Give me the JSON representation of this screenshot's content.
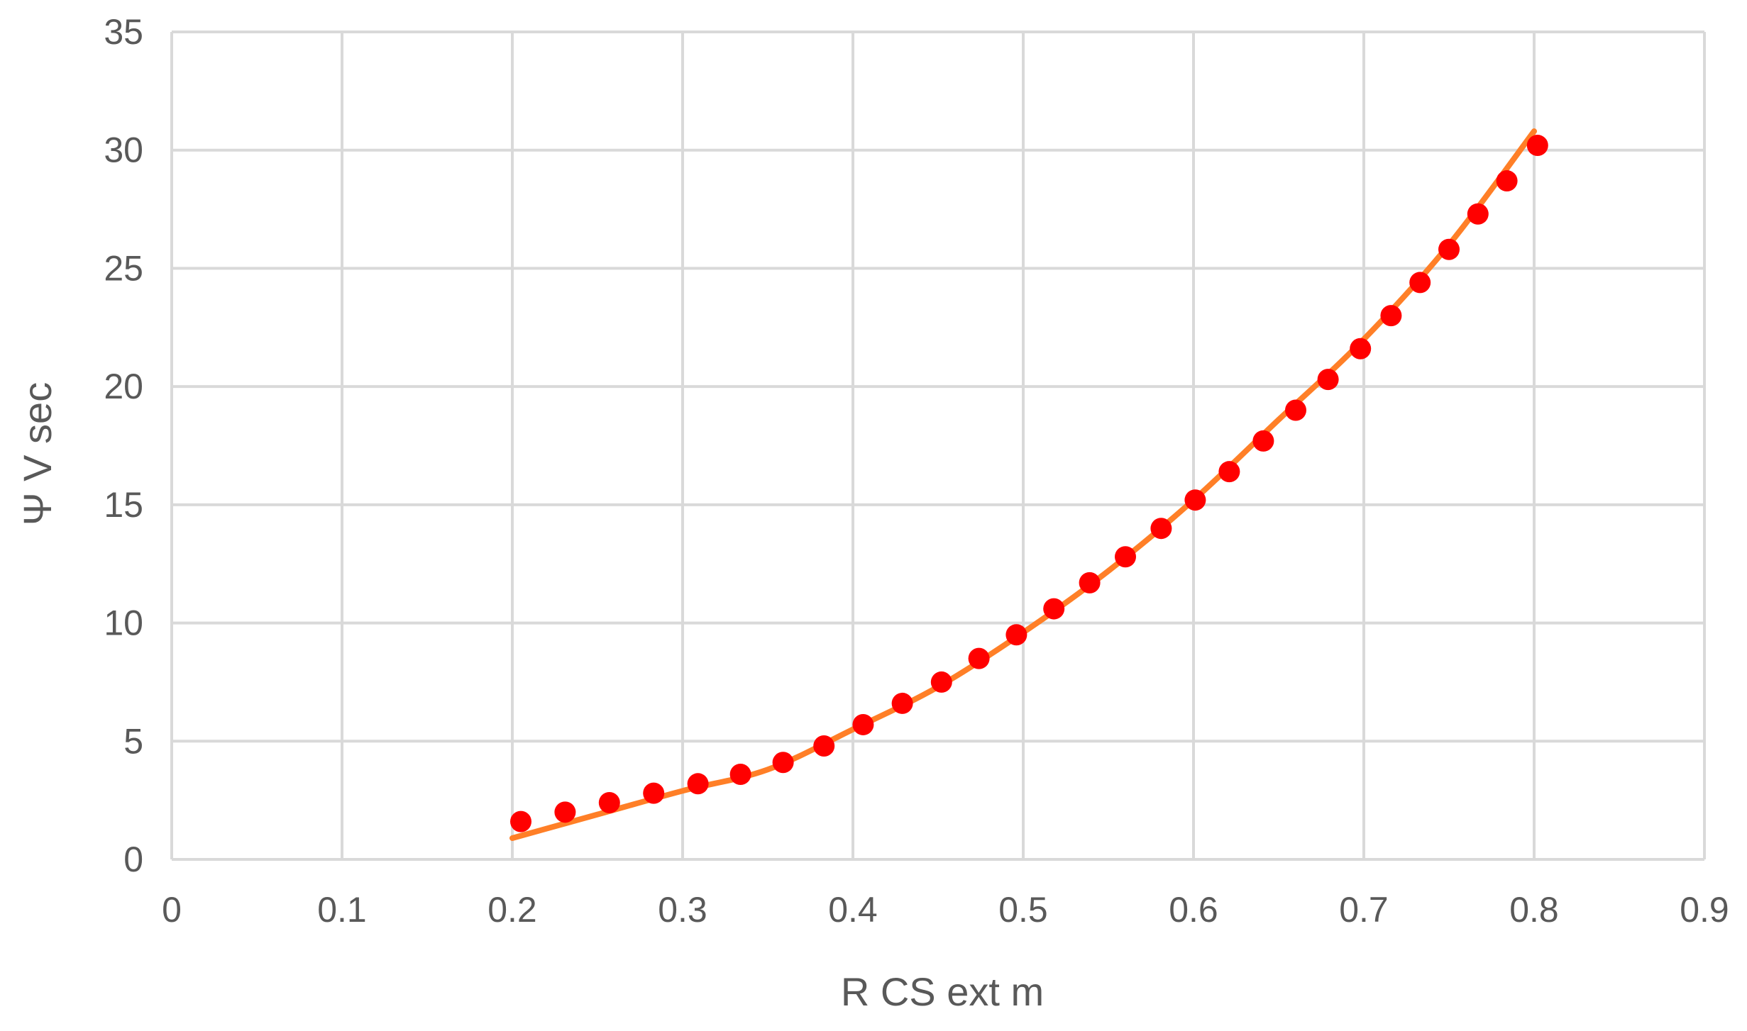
{
  "chart_data": {
    "type": "scatter",
    "xlabel": "R CS ext m",
    "ylabel": "Ψ  V sec",
    "xlim": [
      0,
      0.9
    ],
    "ylim": [
      0,
      35
    ],
    "x_ticks": [
      0,
      0.1,
      0.2,
      0.3,
      0.4,
      0.5,
      0.6,
      0.7,
      0.8,
      0.9
    ],
    "y_ticks": [
      0,
      5,
      10,
      15,
      20,
      25,
      30,
      35
    ],
    "x_tick_labels": [
      "0",
      "0.1",
      "0.2",
      "0.3",
      "0.4",
      "0.5",
      "0.6",
      "0.7",
      "0.8",
      "0.9"
    ],
    "y_tick_labels": [
      "0",
      "5",
      "10",
      "15",
      "20",
      "25",
      "30",
      "35"
    ],
    "grid": true,
    "legend": "none",
    "series": [
      {
        "kind": "scatter",
        "color": "#ff0000",
        "points": [
          [
            0.205,
            1.6
          ],
          [
            0.231,
            2.0
          ],
          [
            0.257,
            2.4
          ],
          [
            0.283,
            2.8
          ],
          [
            0.309,
            3.2
          ],
          [
            0.334,
            3.6
          ],
          [
            0.359,
            4.1
          ],
          [
            0.383,
            4.8
          ],
          [
            0.406,
            5.7
          ],
          [
            0.429,
            6.6
          ],
          [
            0.452,
            7.5
          ],
          [
            0.474,
            8.5
          ],
          [
            0.496,
            9.5
          ],
          [
            0.518,
            10.6
          ],
          [
            0.539,
            11.7
          ],
          [
            0.56,
            12.8
          ],
          [
            0.581,
            14.0
          ],
          [
            0.601,
            15.2
          ],
          [
            0.621,
            16.4
          ],
          [
            0.641,
            17.7
          ],
          [
            0.66,
            19.0
          ],
          [
            0.679,
            20.3
          ],
          [
            0.698,
            21.6
          ],
          [
            0.716,
            23.0
          ],
          [
            0.733,
            24.4
          ],
          [
            0.75,
            25.8
          ],
          [
            0.767,
            27.3
          ],
          [
            0.784,
            28.7
          ],
          [
            0.802,
            30.2
          ]
        ]
      },
      {
        "kind": "line",
        "color": "#ff7f27",
        "points": [
          [
            0.2,
            0.9
          ],
          [
            0.25,
            1.9
          ],
          [
            0.3,
            2.9
          ],
          [
            0.35,
            3.8
          ],
          [
            0.4,
            5.5
          ],
          [
            0.45,
            7.3
          ],
          [
            0.5,
            9.6
          ],
          [
            0.55,
            12.2
          ],
          [
            0.6,
            15.2
          ],
          [
            0.65,
            18.6
          ],
          [
            0.7,
            22.0
          ],
          [
            0.75,
            26.0
          ],
          [
            0.8,
            30.8
          ]
        ]
      }
    ]
  }
}
